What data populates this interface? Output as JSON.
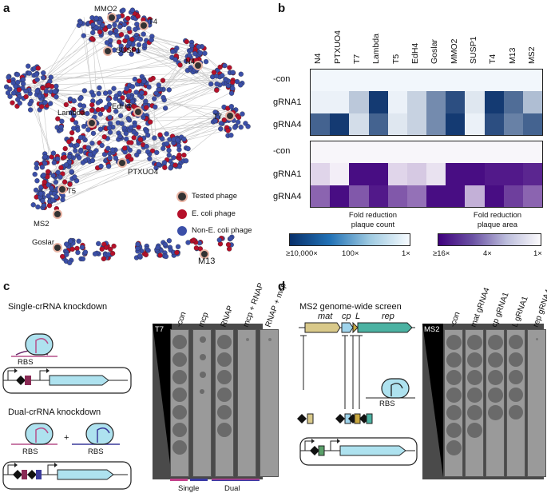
{
  "panels": {
    "a": "a",
    "b": "b",
    "c": "c",
    "d": "d"
  },
  "network": {
    "phage_labels": [
      "MMO2",
      "T4",
      "SUSP1",
      "N4",
      "Lambda",
      "EdH4",
      "T7",
      "PTXUO4",
      "T5",
      "MS2",
      "Goslar",
      "M13"
    ],
    "legend": {
      "tested": "Tested phage",
      "ecoli": "E. coli phage",
      "non_ecoli": "Non-E. coli phage"
    },
    "colors": {
      "ecoli": "#b5102a",
      "non_ecoli": "#3b4fa8",
      "tested_ring": "#e8b3a3"
    }
  },
  "heatmap": {
    "columns": [
      "N4",
      "PTXUO4",
      "T7",
      "Lambda",
      "T5",
      "EdH4",
      "Goslar",
      "MMO2",
      "SUSP1",
      "T4",
      "M13",
      "MS2"
    ],
    "rows": [
      "-con",
      "gRNA1",
      "gRNA4"
    ],
    "count_values": [
      [
        0.02,
        0.02,
        0.02,
        0.02,
        0.02,
        0.02,
        0.02,
        0.02,
        0.02,
        0.02,
        0.02,
        0.02
      ],
      [
        0.05,
        0.05,
        0.25,
        0.95,
        0.05,
        0.2,
        0.55,
        0.85,
        0.1,
        0.95,
        0.7,
        0.3
      ],
      [
        0.75,
        0.95,
        0.15,
        0.75,
        0.1,
        0.2,
        0.55,
        0.95,
        0.05,
        0.85,
        0.6,
        0.75
      ]
    ],
    "area_values": [
      [
        0.02,
        0.02,
        0.02,
        0.02,
        0.02,
        0.02,
        0.02,
        0.02,
        0.02,
        0.02,
        0.02,
        0.02
      ],
      [
        0.15,
        0.05,
        0.95,
        0.95,
        0.15,
        0.2,
        0.1,
        0.95,
        0.95,
        0.9,
        0.9,
        0.85
      ],
      [
        0.6,
        0.95,
        0.65,
        0.9,
        0.65,
        0.55,
        0.95,
        0.95,
        0.3,
        0.95,
        0.75,
        0.6
      ]
    ],
    "legend_count": {
      "title_line1": "Fold reduction",
      "title_line2": "plaque count",
      "ticks": [
        "≥10,000×",
        "100×",
        "1×"
      ]
    },
    "legend_area": {
      "title_line1": "Fold reduction",
      "title_line2": "plaque area",
      "ticks": [
        "≥16×",
        "4×",
        "1×"
      ]
    }
  },
  "panel_c": {
    "title_single": "Single-crRNA knockdown",
    "title_dual": "Dual-crRNA knockdown",
    "rbs": "RBS",
    "plus": "+",
    "phage": "T7",
    "lanes": [
      "-con",
      "mcp",
      "RNAP",
      "mcp + RNAP",
      "RNAP + mcp"
    ],
    "groups": {
      "single": "Single",
      "dual": "Dual"
    }
  },
  "panel_d": {
    "title": "MS2 genome-wide screen",
    "genes": [
      "mat",
      "cp",
      "L",
      "rep"
    ],
    "rbs": "RBS",
    "phage": "MS2",
    "lanes": [
      "-con",
      "mat gRNA4",
      "cp gRNA1",
      "L gRNA1",
      "rep gRNA4"
    ]
  }
}
